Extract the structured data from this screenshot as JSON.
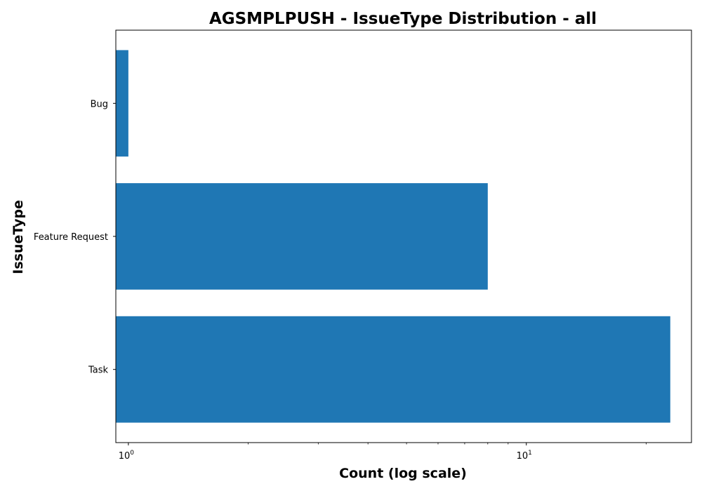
{
  "chart_data": {
    "type": "bar",
    "orientation": "horizontal",
    "title": "AGSMPLPUSH - IssueType Distribution - all",
    "xlabel": "Count (log scale)",
    "ylabel": "IssueType",
    "x_scale": "log",
    "xlim": [
      0.93,
      26
    ],
    "categories": [
      "Bug",
      "Feature Request",
      "Task"
    ],
    "values": [
      1,
      8,
      23
    ],
    "x_tick_labels": [
      {
        "value": 1,
        "base": "10",
        "exp": "0"
      },
      {
        "value": 10,
        "base": "10",
        "exp": "1"
      }
    ],
    "grid": false,
    "bar_color": "#1f77b4"
  }
}
